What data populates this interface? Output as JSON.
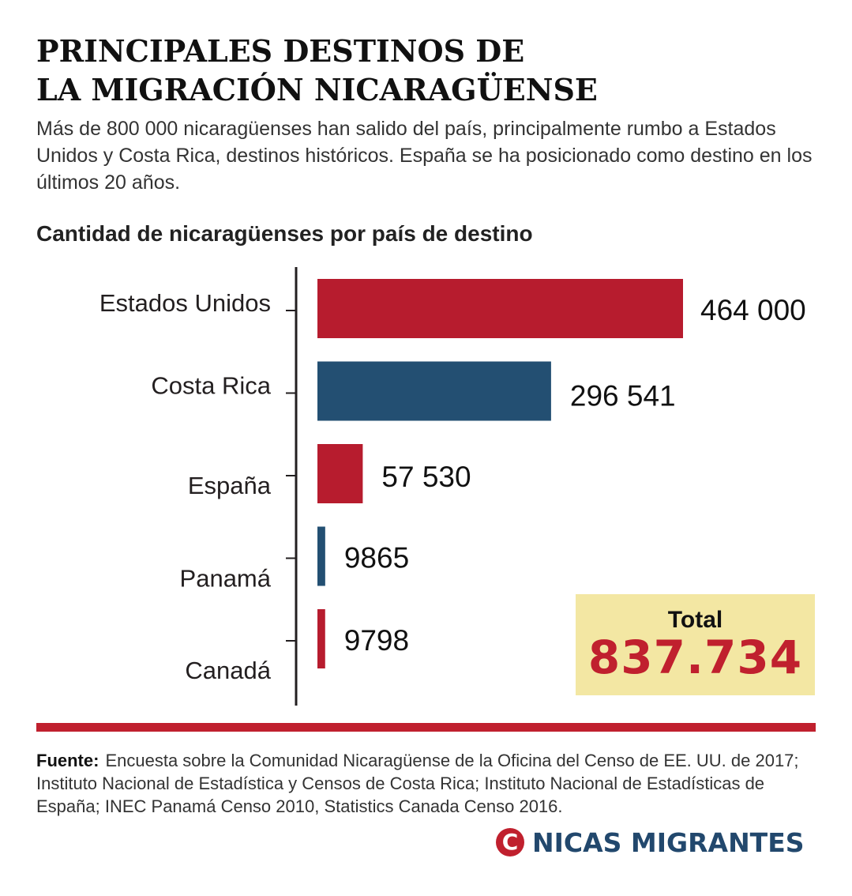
{
  "title_lines": [
    "PRINCIPALES DESTINOS DE",
    "LA MIGRACIÓN NICARAGÜENSE"
  ],
  "subtitle": "Más de 800 000 nicaragüenses han salido del país, principalmente rumbo a Estados Unidos y Costa Rica, destinos históricos. España se ha posicionado como destino en los últimos 20 años.",
  "chart_data": {
    "type": "bar",
    "orientation": "horizontal",
    "title": "Cantidad de nicaragüenses por país de destino",
    "categories": [
      "Estados Unidos",
      "Costa Rica",
      "España",
      "Panamá",
      "Canadá"
    ],
    "values": [
      464000,
      296541,
      57530,
      9865,
      9798
    ],
    "value_labels": [
      "464 000",
      "296 541",
      "57 530",
      "9865",
      "9798"
    ],
    "bar_colors": [
      "#b71c2e",
      "#234f72",
      "#b71c2e",
      "#234f72",
      "#b71c2e"
    ],
    "grid": false,
    "legend": "none"
  },
  "total": {
    "label": "Total",
    "value": "837.734"
  },
  "source": {
    "label": "Fuente:",
    "text": "Encuesta sobre la Comunidad Nicaragüense de la Oficina del Censo de EE. UU. de 2017;  Instituto Nacional de Estadística y Censos de Costa Rica; Instituto Nacional de Estadísticas de España; INEC Panamá Censo 2010, Statistics Canada Censo 2016."
  },
  "brand": {
    "logo_letter": "C",
    "name": "NICAS MIGRANTES"
  },
  "colors": {
    "accent_red": "#c0202e",
    "navy": "#234f72",
    "total_bg": "#f3e7a3"
  }
}
